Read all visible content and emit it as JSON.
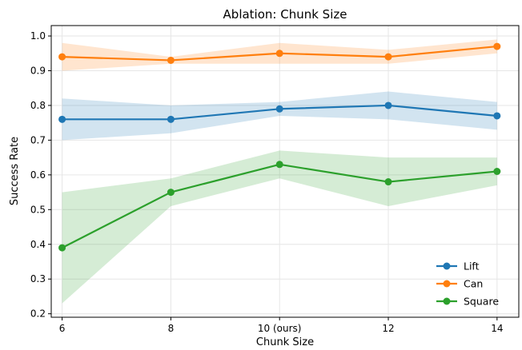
{
  "chart_data": {
    "type": "line",
    "title": "Ablation: Chunk Size",
    "xlabel": "Chunk Size",
    "ylabel": "Success Rate",
    "x": [
      6,
      8,
      10,
      12,
      14
    ],
    "x_tick_labels": [
      "6",
      "8",
      "10 (ours)",
      "12",
      "14"
    ],
    "xlim": [
      5.8,
      14.4
    ],
    "ylim": [
      0.19,
      1.03
    ],
    "y_ticks": [
      0.2,
      0.3,
      0.4,
      0.5,
      0.6,
      0.7,
      0.8,
      0.9,
      1.0
    ],
    "y_tick_labels": [
      "0.2",
      "0.3",
      "0.4",
      "0.5",
      "0.6",
      "0.7",
      "0.8",
      "0.9",
      "1.0"
    ],
    "grid": true,
    "legend_position": "bottom-right",
    "series": [
      {
        "name": "Lift",
        "color": "#1f77b4",
        "values": [
          0.76,
          0.76,
          0.79,
          0.8,
          0.77
        ],
        "lower": [
          0.7,
          0.72,
          0.77,
          0.76,
          0.73
        ],
        "upper": [
          0.82,
          0.8,
          0.81,
          0.84,
          0.81
        ]
      },
      {
        "name": "Can",
        "color": "#ff7f0e",
        "values": [
          0.94,
          0.93,
          0.95,
          0.94,
          0.97
        ],
        "lower": [
          0.9,
          0.92,
          0.92,
          0.92,
          0.95
        ],
        "upper": [
          0.98,
          0.94,
          0.98,
          0.96,
          0.99
        ]
      },
      {
        "name": "Square",
        "color": "#2ca02c",
        "values": [
          0.39,
          0.55,
          0.63,
          0.58,
          0.61
        ],
        "lower": [
          0.23,
          0.51,
          0.59,
          0.51,
          0.57
        ],
        "upper": [
          0.55,
          0.59,
          0.67,
          0.65,
          0.65
        ]
      }
    ]
  }
}
